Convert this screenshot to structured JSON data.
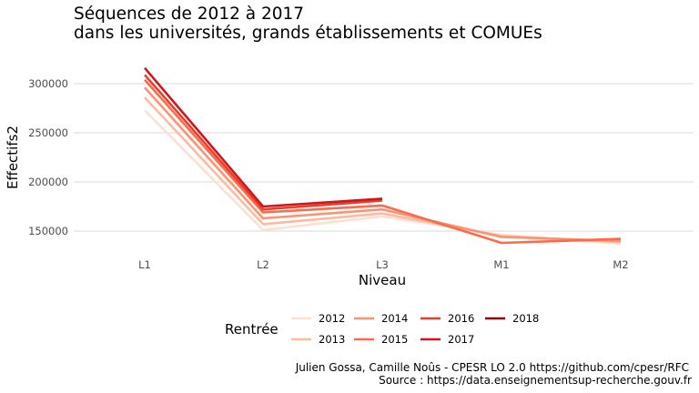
{
  "chart_data": {
    "type": "line",
    "title": "Séquences de 2012 à 2017",
    "subtitle": "dans les universités, grands établissements et COMUEs",
    "xlabel": "Niveau",
    "ylabel": "Effectifs2",
    "categories": [
      "L1",
      "L2",
      "L3",
      "M1",
      "M2"
    ],
    "y_ticks": [
      150000,
      200000,
      250000,
      300000
    ],
    "y_tick_labels": [
      "150000",
      "200000",
      "250000",
      "300000"
    ],
    "ylim": [
      128000,
      326000
    ],
    "grid": true,
    "legend": {
      "title": "Rentrée",
      "position": "bottom"
    },
    "series": [
      {
        "name": "2012",
        "color": "#fde0d2",
        "values": [
          273000,
          151000,
          165000,
          146000,
          137000
        ]
      },
      {
        "name": "2013",
        "color": "#fcbba1",
        "values": [
          286000,
          157000,
          168000,
          145000,
          139000
        ]
      },
      {
        "name": "2014",
        "color": "#fc9272",
        "values": [
          296000,
          163000,
          172000,
          144000,
          140000
        ]
      },
      {
        "name": "2015",
        "color": "#fb6a4a",
        "values": [
          304000,
          169000,
          176000,
          138000,
          142000
        ]
      },
      {
        "name": "2016",
        "color": "#ef3b2c",
        "values": [
          309000,
          172000,
          181000,
          null,
          null
        ]
      },
      {
        "name": "2017",
        "color": "#cb181d",
        "values": [
          316000,
          175000,
          183000,
          null,
          null
        ]
      },
      {
        "name": "2018",
        "color": "#99000d",
        "values": [
          null,
          null,
          null,
          null,
          null
        ]
      }
    ],
    "caption": [
      "Julien Gossa, Camille Noûs - CPESR LO 2.0 https://github.com/cpesr/RFC",
      "Source : https://data.enseignementsup-recherche.gouv.fr"
    ]
  }
}
